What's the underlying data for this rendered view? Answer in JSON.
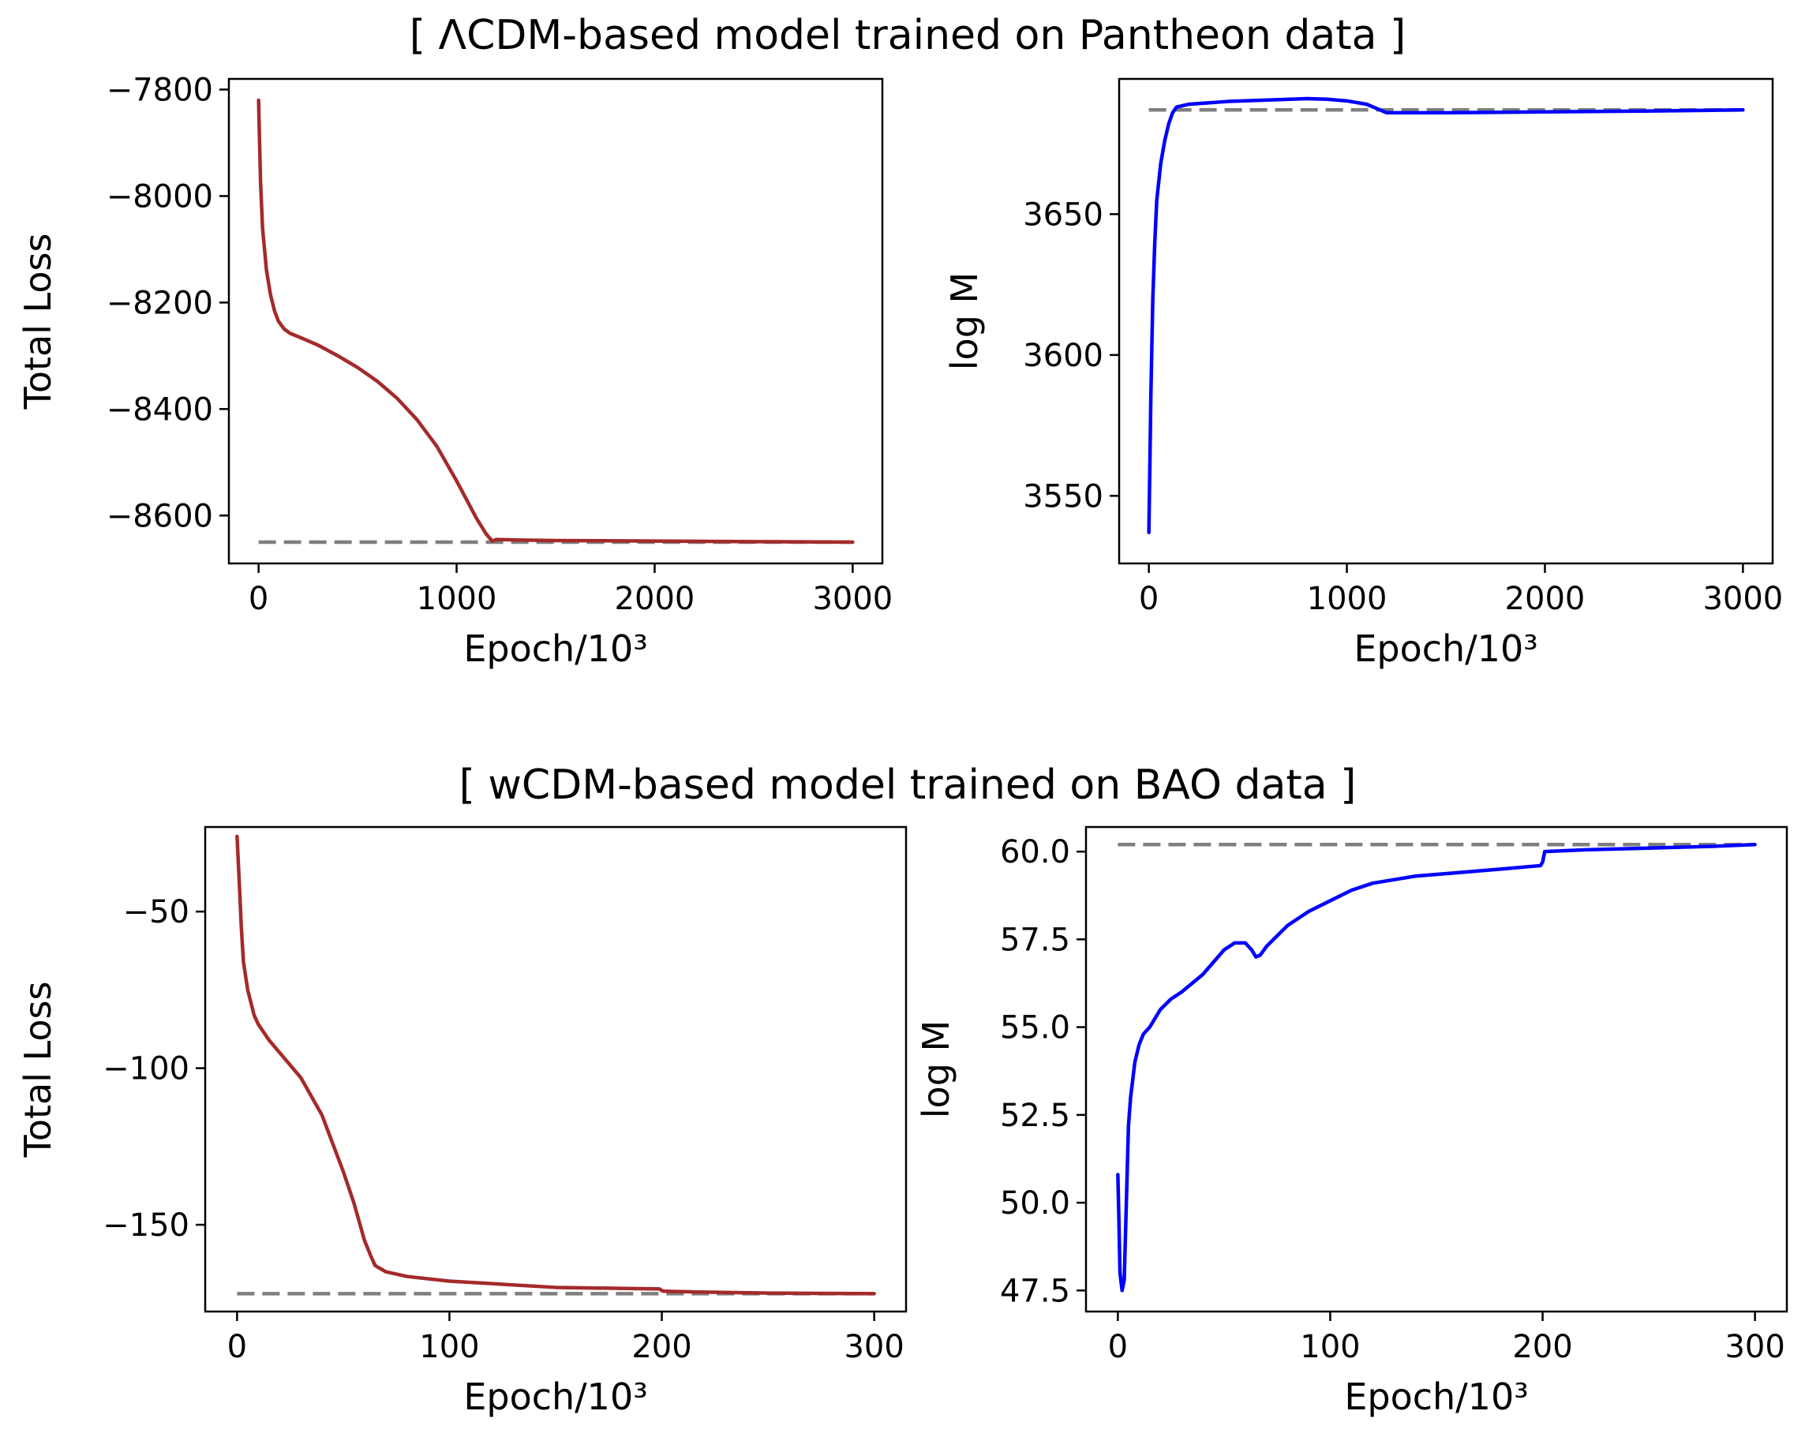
{
  "titles": {
    "top": "[ ΛCDM-based model trained on Pantheon data ]",
    "bottom": "[ wCDM-based model trained on BAO data ]"
  },
  "chart_data": [
    {
      "id": "tl",
      "type": "line",
      "xlabel": "Epoch/10³",
      "ylabel": "Total Loss",
      "xlim": [
        -150,
        3150
      ],
      "ylim": [
        -8690,
        -7780
      ],
      "xticks": [
        0,
        1000,
        2000,
        3000
      ],
      "xtick_labels": [
        "0",
        "1000",
        "2000",
        "3000"
      ],
      "yticks": [
        -7800,
        -8000,
        -8200,
        -8400,
        -8600
      ],
      "ytick_labels": [
        "−7800",
        "−8000",
        "−8200",
        "−8400",
        "−8600"
      ],
      "reference": -8650,
      "color": "#a52a2a",
      "series": [
        {
          "name": "Total Loss",
          "x": [
            0,
            5,
            10,
            20,
            40,
            60,
            80,
            100,
            130,
            160,
            200,
            300,
            400,
            500,
            600,
            700,
            800,
            900,
            1000,
            1050,
            1100,
            1150,
            1180,
            1200,
            1300,
            1500,
            2000,
            2500,
            3000
          ],
          "y": [
            -7820,
            -7900,
            -7975,
            -8060,
            -8140,
            -8185,
            -8215,
            -8235,
            -8250,
            -8258,
            -8264,
            -8280,
            -8300,
            -8322,
            -8348,
            -8380,
            -8420,
            -8470,
            -8535,
            -8570,
            -8605,
            -8635,
            -8648,
            -8645,
            -8646,
            -8647,
            -8648,
            -8649,
            -8650
          ]
        }
      ]
    },
    {
      "id": "tr",
      "type": "line",
      "xlabel": "Epoch/10³",
      "ylabel": "log M",
      "xlim": [
        -150,
        3150
      ],
      "ylim": [
        3526,
        3698
      ],
      "xticks": [
        0,
        1000,
        2000,
        3000
      ],
      "xtick_labels": [
        "0",
        "1000",
        "2000",
        "3000"
      ],
      "yticks": [
        3550,
        3600,
        3650
      ],
      "ytick_labels": [
        "3550",
        "3600",
        "3650"
      ],
      "reference": 3687,
      "color": "#0000ff",
      "series": [
        {
          "name": "log M",
          "x": [
            0,
            5,
            10,
            20,
            30,
            40,
            60,
            80,
            100,
            120,
            140,
            200,
            400,
            600,
            800,
            900,
            1000,
            1100,
            1150,
            1200,
            1300,
            1500,
            2000,
            2500,
            3000
          ],
          "y": [
            3537,
            3560,
            3585,
            3620,
            3640,
            3655,
            3668,
            3676,
            3682,
            3686,
            3688,
            3689,
            3690,
            3690.5,
            3691,
            3690.8,
            3690.2,
            3689,
            3687.5,
            3686,
            3686,
            3686,
            3686.3,
            3686.6,
            3687
          ]
        }
      ]
    },
    {
      "id": "bl",
      "type": "line",
      "xlabel": "Epoch/10³",
      "ylabel": "Total Loss",
      "xlim": [
        -15,
        315
      ],
      "ylim": [
        -177.7,
        -23
      ],
      "xticks": [
        0,
        100,
        200,
        300
      ],
      "xtick_labels": [
        "0",
        "100",
        "200",
        "300"
      ],
      "yticks": [
        -50,
        -100,
        -150
      ],
      "ytick_labels": [
        "−50",
        "−100",
        "−150"
      ],
      "reference": -172,
      "color": "#a52a2a",
      "series": [
        {
          "name": "Total Loss",
          "x": [
            0,
            1,
            2,
            3,
            5,
            8,
            10,
            15,
            20,
            30,
            40,
            50,
            55,
            60,
            63,
            65,
            70,
            80,
            100,
            150,
            199,
            200,
            201,
            220,
            250,
            300
          ],
          "y": [
            -26,
            -40,
            -55,
            -66,
            -75,
            -83,
            -86,
            -91,
            -95,
            -103,
            -115,
            -133,
            -143,
            -155,
            -160,
            -163,
            -165,
            -166.5,
            -168,
            -170,
            -170.5,
            -171,
            -171.2,
            -171.5,
            -171.8,
            -172
          ]
        }
      ]
    },
    {
      "id": "br",
      "type": "line",
      "xlabel": "Epoch/10³",
      "ylabel": "log M",
      "xlim": [
        -15,
        315
      ],
      "ylim": [
        46.9,
        60.7
      ],
      "xticks": [
        0,
        100,
        200,
        300
      ],
      "xtick_labels": [
        "0",
        "100",
        "200",
        "300"
      ],
      "yticks": [
        47.5,
        50.0,
        52.5,
        55.0,
        57.5,
        60.0
      ],
      "ytick_labels": [
        "47.5",
        "50.0",
        "52.5",
        "55.0",
        "57.5",
        "60.0"
      ],
      "reference": 60.2,
      "color": "#0000ff",
      "series": [
        {
          "name": "log M",
          "x": [
            0,
            0.5,
            1,
            2,
            3,
            4,
            5,
            6,
            8,
            10,
            12,
            15,
            20,
            25,
            30,
            40,
            50,
            55,
            60,
            63,
            65,
            67,
            70,
            80,
            90,
            100,
            110,
            120,
            140,
            160,
            180,
            199,
            200,
            201,
            220,
            250,
            280,
            300
          ],
          "y": [
            50.8,
            49.5,
            48.0,
            47.5,
            47.8,
            50.0,
            52.2,
            53.0,
            54.0,
            54.5,
            54.8,
            55.0,
            55.5,
            55.8,
            56.0,
            56.5,
            57.2,
            57.4,
            57.4,
            57.2,
            57.0,
            57.05,
            57.3,
            57.9,
            58.3,
            58.6,
            58.9,
            59.1,
            59.3,
            59.4,
            59.5,
            59.6,
            59.7,
            60.0,
            60.05,
            60.1,
            60.15,
            60.2
          ]
        }
      ]
    }
  ]
}
